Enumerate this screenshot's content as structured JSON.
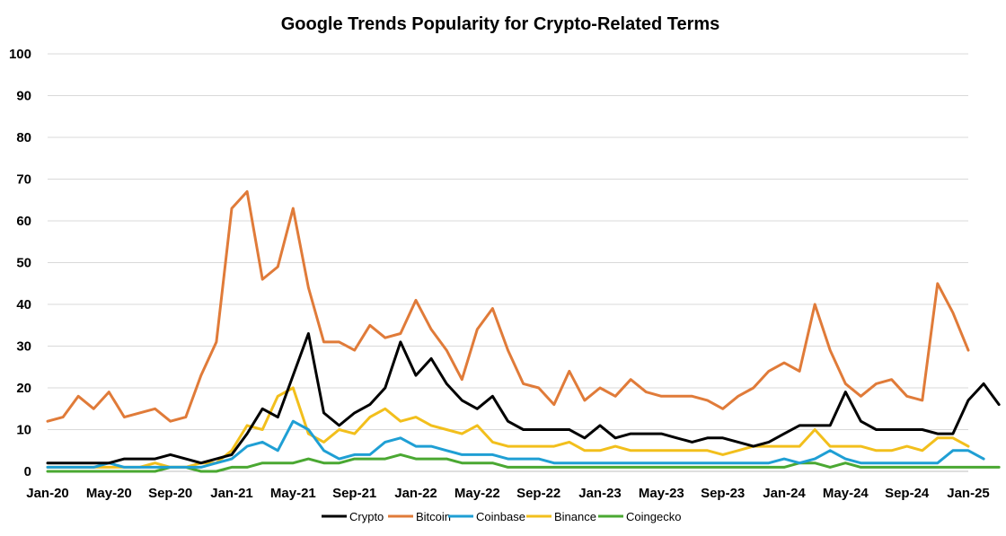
{
  "chart_data": {
    "type": "line",
    "title": "Google Trends Popularity for Crypto-Related Terms",
    "xlabel": "",
    "ylabel": "",
    "ylim": [
      0,
      100
    ],
    "yticks": [
      0,
      10,
      20,
      30,
      40,
      50,
      60,
      70,
      80,
      90,
      100
    ],
    "x_tick_labels": [
      "Jan-20",
      "May-20",
      "Sep-20",
      "Jan-21",
      "May-21",
      "Sep-21",
      "Jan-22",
      "May-22",
      "Sep-22",
      "Jan-23",
      "May-23",
      "Sep-23",
      "Jan-24",
      "May-24",
      "Sep-24",
      "Jan-25"
    ],
    "months_per_tick": 4,
    "grid": true,
    "legend_position": "bottom",
    "series": [
      {
        "name": "Crypto",
        "color": "#000000",
        "values": [
          2,
          2,
          2,
          2,
          2,
          3,
          3,
          3,
          4,
          3,
          2,
          3,
          4,
          9,
          15,
          13,
          23,
          33,
          14,
          11,
          14,
          16,
          20,
          31,
          23,
          27,
          21,
          17,
          15,
          18,
          12,
          10,
          10,
          10,
          10,
          8,
          11,
          8,
          9,
          9,
          9,
          8,
          7,
          8,
          8,
          7,
          6,
          7,
          9,
          11,
          11,
          11,
          19,
          12,
          10,
          10,
          10,
          10,
          9,
          9,
          17,
          21,
          16
        ]
      },
      {
        "name": "Bitcoin",
        "color": "#e07b39",
        "values": [
          12,
          13,
          18,
          15,
          19,
          13,
          14,
          15,
          12,
          13,
          23,
          31,
          63,
          67,
          46,
          49,
          63,
          44,
          31,
          31,
          29,
          35,
          32,
          33,
          41,
          34,
          29,
          22,
          34,
          39,
          29,
          21,
          20,
          16,
          24,
          17,
          20,
          18,
          22,
          19,
          18,
          18,
          18,
          17,
          15,
          18,
          20,
          24,
          26,
          24,
          40,
          29,
          21,
          18,
          21,
          22,
          18,
          17,
          45,
          38,
          29
        ]
      },
      {
        "name": "Coinbase",
        "color": "#1f9fd4",
        "values": [
          1,
          1,
          1,
          1,
          2,
          1,
          1,
          1,
          1,
          1,
          1,
          2,
          3,
          6,
          7,
          5,
          12,
          10,
          5,
          3,
          4,
          4,
          7,
          8,
          6,
          6,
          5,
          4,
          4,
          4,
          3,
          3,
          3,
          2,
          2,
          2,
          2,
          2,
          2,
          2,
          2,
          2,
          2,
          2,
          2,
          2,
          2,
          2,
          3,
          2,
          3,
          5,
          3,
          2,
          2,
          2,
          2,
          2,
          2,
          5,
          5,
          3
        ]
      },
      {
        "name": "Binance",
        "color": "#f2bf1c",
        "values": [
          1,
          1,
          1,
          1,
          1,
          1,
          1,
          2,
          1,
          1,
          2,
          2,
          5,
          11,
          10,
          18,
          20,
          9,
          7,
          10,
          9,
          13,
          15,
          12,
          13,
          11,
          10,
          9,
          11,
          7,
          6,
          6,
          6,
          6,
          7,
          5,
          5,
          6,
          5,
          5,
          5,
          5,
          5,
          5,
          4,
          5,
          6,
          6,
          6,
          6,
          10,
          6,
          6,
          6,
          5,
          5,
          6,
          5,
          8,
          8,
          6
        ]
      },
      {
        "name": "Coingecko",
        "color": "#4aa832",
        "values": [
          0,
          0,
          0,
          0,
          0,
          0,
          0,
          0,
          1,
          1,
          0,
          0,
          1,
          1,
          2,
          2,
          2,
          3,
          2,
          2,
          3,
          3,
          3,
          4,
          3,
          3,
          3,
          2,
          2,
          2,
          1,
          1,
          1,
          1,
          1,
          1,
          1,
          1,
          1,
          1,
          1,
          1,
          1,
          1,
          1,
          1,
          1,
          1,
          1,
          2,
          2,
          1,
          2,
          1,
          1,
          1,
          1,
          1,
          1,
          1,
          1,
          1,
          1
        ]
      }
    ]
  }
}
